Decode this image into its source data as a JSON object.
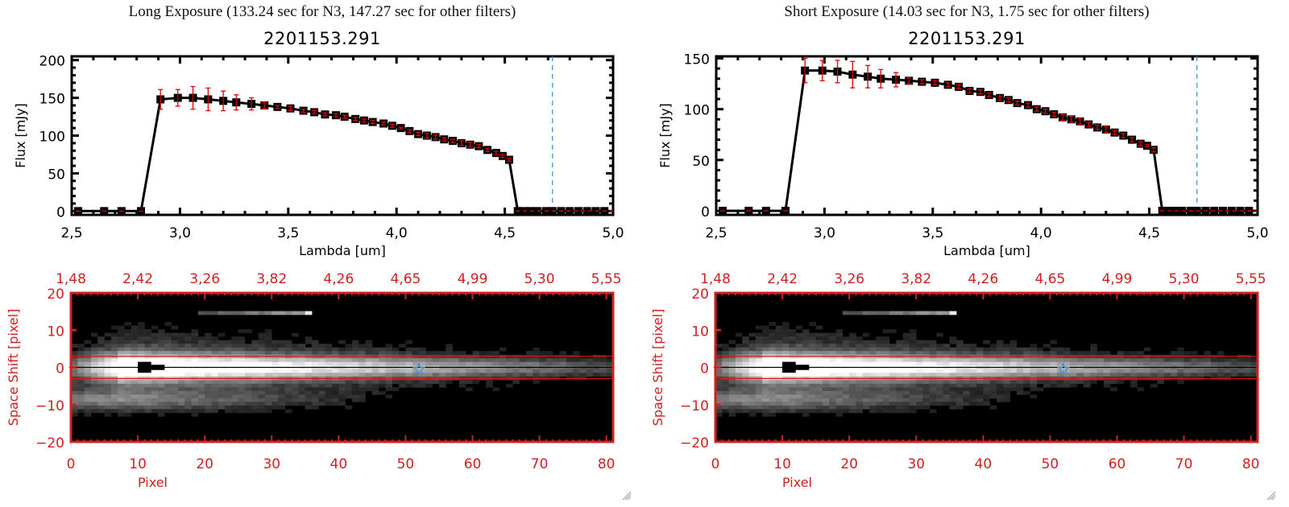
{
  "panels": [
    {
      "id": "long",
      "exposure_title": "Long Exposure (133.24 sec for N3, 147.27 sec for other filters)",
      "object_id": "2201153.291"
    },
    {
      "id": "short",
      "exposure_title": "Short Exposure (14.03 sec for N3, 1.75 sec for other filters)",
      "object_id": "2201153.291"
    }
  ],
  "colors": {
    "spectrum_line": "#000000",
    "error_bar": "#e00000",
    "marker_vline": "#2a8ae0",
    "zero_dash": "#e00000",
    "image_axes": "#d02020",
    "aperture_line": "#e01010",
    "star_marker": "#3a8ee6"
  },
  "chart_data": [
    {
      "type": "line",
      "title": "2201153.291",
      "subtitle": "Long Exposure (133.24 sec for N3, 147.27 sec for other filters)",
      "xlabel": "Lambda [um]",
      "ylabel": "Flux [mJy]",
      "xlim": [
        2.5,
        5.0
      ],
      "ylim": [
        -5,
        205
      ],
      "xticks": [
        "2.5",
        "3.0",
        "3.5",
        "4.0",
        "4.5",
        "5.0"
      ],
      "xtick_values": [
        2.5,
        3.0,
        3.5,
        4.0,
        4.5,
        5.0
      ],
      "yticks": [
        "0",
        "50",
        "100",
        "150",
        "200"
      ],
      "ytick_values": [
        0,
        50,
        100,
        150,
        200
      ],
      "grid": false,
      "vline_x": 4.72,
      "series": [
        {
          "name": "flux",
          "x": [
            2.53,
            2.65,
            2.73,
            2.82,
            2.91,
            2.99,
            3.06,
            3.13,
            3.2,
            3.26,
            3.33,
            3.39,
            3.45,
            3.51,
            3.57,
            3.62,
            3.67,
            3.72,
            3.76,
            3.81,
            3.85,
            3.89,
            3.94,
            3.98,
            4.02,
            4.06,
            4.1,
            4.14,
            4.18,
            4.22,
            4.26,
            4.3,
            4.34,
            4.38,
            4.42,
            4.46,
            4.49,
            4.52,
            4.56,
            4.59,
            4.62,
            4.65,
            4.69,
            4.72,
            4.76,
            4.8,
            4.84,
            4.88,
            4.92,
            4.96
          ],
          "y": [
            0,
            0,
            0,
            0,
            148,
            150,
            150,
            148,
            146,
            144,
            142,
            140,
            138,
            136,
            133,
            131,
            128,
            127,
            125,
            122,
            120,
            118,
            116,
            113,
            110,
            106,
            102,
            100,
            98,
            95,
            93,
            90,
            88,
            86,
            81,
            77,
            73,
            68,
            0,
            0,
            0,
            0,
            0,
            0,
            0,
            0,
            0,
            0,
            0,
            0
          ],
          "err": [
            0,
            0,
            0,
            0,
            13,
            11,
            15,
            15,
            13,
            10,
            8,
            4,
            2,
            3,
            2,
            2,
            2,
            2,
            2,
            2,
            2,
            2,
            2,
            2,
            1,
            2,
            2,
            3,
            3,
            2,
            2,
            3,
            3,
            2,
            2,
            2,
            2,
            2,
            0,
            0,
            0,
            0,
            0,
            0,
            0,
            0,
            0,
            0,
            0,
            0
          ]
        }
      ]
    },
    {
      "type": "line",
      "title": "2201153.291",
      "subtitle": "Short Exposure (14.03 sec for N3, 1.75 sec for other filters)",
      "xlabel": "Lambda [um]",
      "ylabel": "Flux [mJy]",
      "xlim": [
        2.5,
        5.0
      ],
      "ylim": [
        -4,
        152
      ],
      "xticks": [
        "2.5",
        "3.0",
        "3.5",
        "4.0",
        "4.5",
        "5.0"
      ],
      "xtick_values": [
        2.5,
        3.0,
        3.5,
        4.0,
        4.5,
        5.0
      ],
      "yticks": [
        "0",
        "50",
        "100",
        "150"
      ],
      "ytick_values": [
        0,
        50,
        100,
        150
      ],
      "grid": false,
      "vline_x": 4.72,
      "series": [
        {
          "name": "flux",
          "x": [
            2.53,
            2.65,
            2.73,
            2.82,
            2.91,
            2.99,
            3.06,
            3.13,
            3.2,
            3.26,
            3.33,
            3.39,
            3.45,
            3.51,
            3.57,
            3.62,
            3.67,
            3.72,
            3.76,
            3.81,
            3.85,
            3.89,
            3.94,
            3.98,
            4.02,
            4.06,
            4.1,
            4.14,
            4.18,
            4.22,
            4.26,
            4.3,
            4.34,
            4.38,
            4.42,
            4.46,
            4.49,
            4.52,
            4.56,
            4.59,
            4.62,
            4.65,
            4.69,
            4.72,
            4.76,
            4.8,
            4.84,
            4.88,
            4.92,
            4.96
          ],
          "y": [
            0,
            0,
            0,
            0,
            138,
            138,
            137,
            134,
            132,
            130,
            129,
            128,
            127,
            126,
            124,
            122,
            118,
            117,
            114,
            111,
            109,
            106,
            104,
            100,
            98,
            95,
            92,
            90,
            88,
            85,
            82,
            80,
            77,
            74,
            70,
            66,
            64,
            60,
            0,
            0,
            0,
            0,
            0,
            0,
            0,
            0,
            0,
            0,
            0,
            0
          ],
          "err": [
            0,
            0,
            0,
            0,
            12,
            10,
            11,
            13,
            11,
            9,
            7,
            3,
            2,
            2,
            2,
            2,
            2,
            2,
            2,
            2,
            2,
            2,
            2,
            2,
            2,
            2,
            3,
            3,
            3,
            2,
            2,
            3,
            2,
            2,
            2,
            2,
            1,
            2,
            0,
            0,
            0,
            0,
            0,
            0,
            0,
            0,
            0,
            0,
            0,
            0
          ]
        }
      ]
    },
    {
      "type": "heatmap",
      "title": "",
      "xlabel": "Pixel",
      "ylabel": "Space Shift [pixel]",
      "xlim": [
        0,
        81
      ],
      "ylim": [
        -20,
        20
      ],
      "xticks": [
        "0",
        "10",
        "20",
        "30",
        "40",
        "50",
        "60",
        "70",
        "80"
      ],
      "xtick_values": [
        0,
        10,
        20,
        30,
        40,
        50,
        60,
        70,
        80
      ],
      "top_xticks": [
        "1.48",
        "2.42",
        "3.26",
        "3.82",
        "4.26",
        "4.65",
        "4.99",
        "5.30",
        "5.55"
      ],
      "yticks": [
        "-20",
        "-10",
        "0",
        "10",
        "20"
      ],
      "ytick_values": [
        -20,
        -10,
        0,
        10,
        20
      ],
      "aperture_rows": [
        -3,
        3
      ],
      "center_row": 0,
      "star_position": [
        52,
        -0.5
      ],
      "saturated_block": {
        "x": [
          10,
          14
        ],
        "y": [
          -1,
          1
        ]
      },
      "exposure": "long"
    },
    {
      "type": "heatmap",
      "title": "",
      "xlabel": "Pixel",
      "ylabel": "Space Shift [pixel]",
      "xlim": [
        0,
        81
      ],
      "ylim": [
        -20,
        20
      ],
      "xticks": [
        "0",
        "10",
        "20",
        "30",
        "40",
        "50",
        "60",
        "70",
        "80"
      ],
      "xtick_values": [
        0,
        10,
        20,
        30,
        40,
        50,
        60,
        70,
        80
      ],
      "top_xticks": [
        "1.48",
        "2.42",
        "3.26",
        "3.82",
        "4.26",
        "4.65",
        "4.99",
        "5.30",
        "5.55"
      ],
      "yticks": [
        "-20",
        "-10",
        "0",
        "10",
        "20"
      ],
      "ytick_values": [
        -20,
        -10,
        0,
        10,
        20
      ],
      "aperture_rows": [
        -3,
        3
      ],
      "center_row": 0,
      "star_position": [
        52,
        -0.5
      ],
      "saturated_block": {
        "x": [
          10,
          14
        ],
        "y": [
          -1,
          1
        ]
      },
      "exposure": "short"
    }
  ]
}
